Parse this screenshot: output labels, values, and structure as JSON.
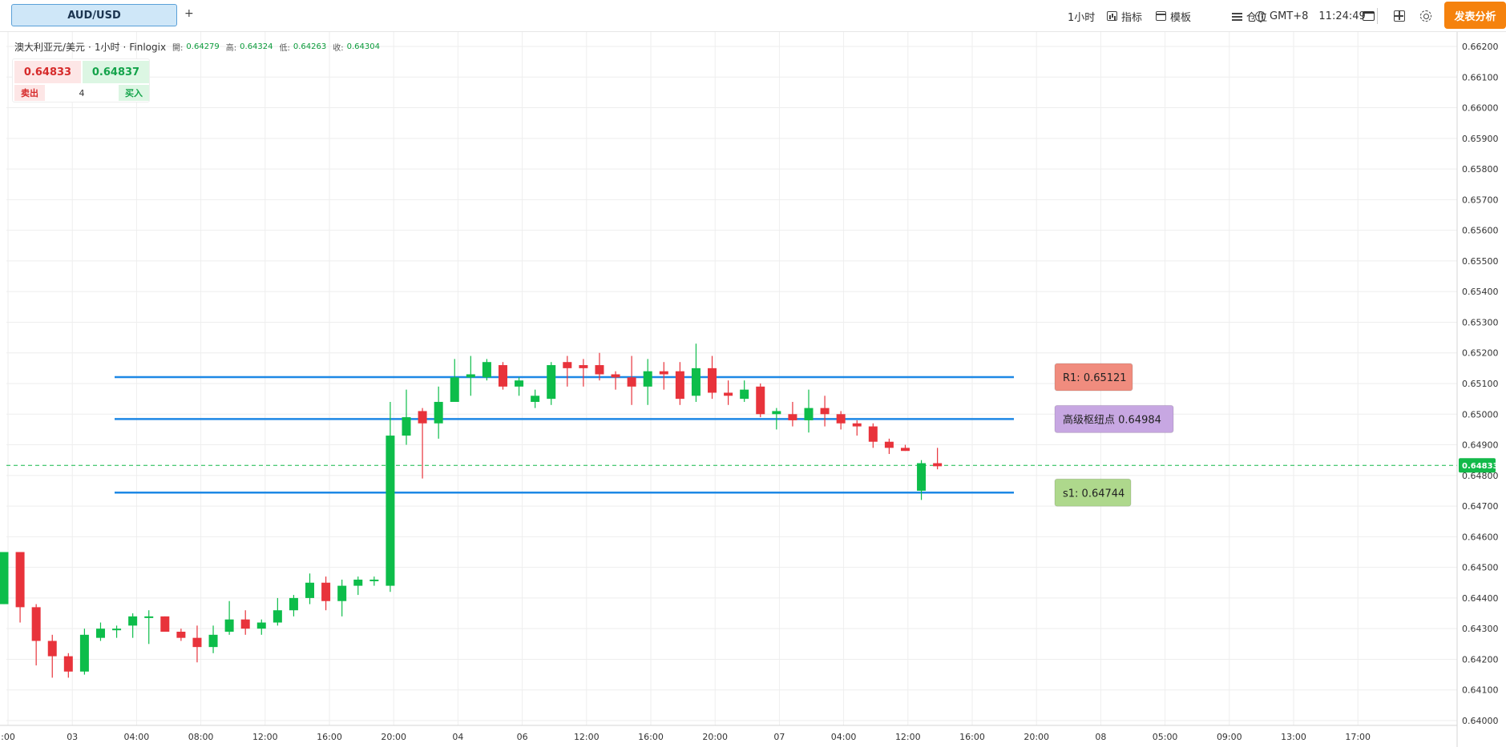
{
  "toolbar": {
    "symbol_tab": "AUD/USD",
    "add_tab": "+",
    "interval": "1小时",
    "indicators_label": "指标",
    "templates_label": "模板",
    "positions_label": "仓位",
    "timezone": "GMT+8",
    "clock": "11:24:49",
    "publish_label": "发表分析"
  },
  "legend": {
    "symbol_name": "澳大利亚元/美元",
    "interval": "1小时",
    "source": "Finlogix",
    "open_label": "開:",
    "open": "0.64279",
    "high_label": "高:",
    "high": "0.64324",
    "low_label": "低:",
    "low": "0.64263",
    "close_label": "收:",
    "close": "0.64304",
    "separator": "·"
  },
  "trade": {
    "sell_price": "0.64833",
    "buy_price": "0.64837",
    "sell_label": "卖出",
    "buy_label": "买入",
    "quantity": "4"
  },
  "colors": {
    "up": "#0dbd4a",
    "down": "#e8333b",
    "level_line": "#1e88e5",
    "last_price": "#13b94a",
    "publish": "#f5820d"
  },
  "chart_data": {
    "type": "candlestick",
    "symbol": "AUD/USD",
    "ylim": [
      0.64,
      0.6623
    ],
    "y_ticks": [
      "0.66200",
      "0.66100",
      "0.66000",
      "0.65900",
      "0.65800",
      "0.65700",
      "0.65600",
      "0.65500",
      "0.65400",
      "0.65300",
      "0.65200",
      "0.65100",
      "0.65000",
      "0.64900",
      "0.64800",
      "0.64700",
      "0.64600",
      "0.64500",
      "0.64400",
      "0.64300",
      "0.64200",
      "0.64100",
      "0.64000"
    ],
    "x_ticks": [
      ":00",
      "03",
      "04:00",
      "08:00",
      "12:00",
      "16:00",
      "20:00",
      "04",
      "06",
      "12:00",
      "16:00",
      "20:00",
      "07",
      "04:00",
      "12:00",
      "16:00",
      "20:00",
      "08",
      "05:00",
      "09:00",
      "13:00",
      "17:00"
    ],
    "last_price": "0.64833",
    "levels": [
      {
        "name": "R1",
        "label": "R1: 0.65121",
        "value": 0.65121,
        "color": "#f08c7e"
      },
      {
        "name": "pivot",
        "label": "高级枢纽点 0.64984",
        "value": 0.64984,
        "color": "#c7a7e2"
      },
      {
        "name": "S1",
        "label": "s1: 0.64744",
        "value": 0.64744,
        "color": "#aed88c"
      }
    ],
    "candles": [
      [
        0.6438,
        0.6455,
        0.6438,
        0.6455
      ],
      [
        0.6455,
        0.6455,
        0.6432,
        0.6437
      ],
      [
        0.6437,
        0.6438,
        0.6418,
        0.6426
      ],
      [
        0.6426,
        0.6428,
        0.6414,
        0.6421
      ],
      [
        0.6421,
        0.6422,
        0.6414,
        0.6416
      ],
      [
        0.6416,
        0.643,
        0.6415,
        0.6428
      ],
      [
        0.6427,
        0.6432,
        0.6426,
        0.643
      ],
      [
        0.643,
        0.6431,
        0.6427,
        0.643
      ],
      [
        0.6431,
        0.6435,
        0.6427,
        0.6434
      ],
      [
        0.6434,
        0.6436,
        0.6425,
        0.6434
      ],
      [
        0.6434,
        0.6434,
        0.6429,
        0.6429
      ],
      [
        0.6429,
        0.643,
        0.6426,
        0.6427
      ],
      [
        0.6427,
        0.6431,
        0.6419,
        0.6424
      ],
      [
        0.6424,
        0.6431,
        0.6422,
        0.6428
      ],
      [
        0.6429,
        0.6439,
        0.6428,
        0.6433
      ],
      [
        0.6433,
        0.6436,
        0.6428,
        0.643
      ],
      [
        0.643,
        0.6433,
        0.6428,
        0.6432
      ],
      [
        0.6432,
        0.644,
        0.6431,
        0.6436
      ],
      [
        0.6436,
        0.6441,
        0.6434,
        0.644
      ],
      [
        0.644,
        0.6448,
        0.6438,
        0.6445
      ],
      [
        0.6445,
        0.6447,
        0.6436,
        0.6439
      ],
      [
        0.6439,
        0.6446,
        0.6434,
        0.6444
      ],
      [
        0.6444,
        0.6447,
        0.6441,
        0.6446
      ],
      [
        0.6446,
        0.6447,
        0.6444,
        0.6446
      ],
      [
        0.6444,
        0.6504,
        0.6442,
        0.6493
      ],
      [
        0.6493,
        0.6508,
        0.649,
        0.6499
      ],
      [
        0.6501,
        0.6502,
        0.6479,
        0.6497
      ],
      [
        0.6497,
        0.6509,
        0.6492,
        0.6504
      ],
      [
        0.6504,
        0.6518,
        0.6505,
        0.6512
      ],
      [
        0.6512,
        0.6519,
        0.6506,
        0.6513
      ],
      [
        0.6512,
        0.6518,
        0.6511,
        0.6517
      ],
      [
        0.6516,
        0.6517,
        0.6508,
        0.6509
      ],
      [
        0.6509,
        0.6512,
        0.6506,
        0.6511
      ],
      [
        0.6504,
        0.6508,
        0.6502,
        0.6506
      ],
      [
        0.6505,
        0.6517,
        0.6503,
        0.6516
      ],
      [
        0.6517,
        0.6519,
        0.6509,
        0.6515
      ],
      [
        0.6516,
        0.6518,
        0.6509,
        0.6515
      ],
      [
        0.6516,
        0.652,
        0.6511,
        0.6513
      ],
      [
        0.6513,
        0.6514,
        0.6508,
        0.6512
      ],
      [
        0.6512,
        0.6519,
        0.6503,
        0.6509
      ],
      [
        0.6509,
        0.6518,
        0.6503,
        0.6514
      ],
      [
        0.6514,
        0.6517,
        0.6508,
        0.6513
      ],
      [
        0.6514,
        0.6517,
        0.6503,
        0.6505
      ],
      [
        0.6506,
        0.6523,
        0.6504,
        0.6515
      ],
      [
        0.6515,
        0.6519,
        0.6505,
        0.6507
      ],
      [
        0.6507,
        0.6511,
        0.6503,
        0.6506
      ],
      [
        0.6505,
        0.6511,
        0.6504,
        0.6508
      ],
      [
        0.6509,
        0.651,
        0.6499,
        0.65
      ],
      [
        0.65,
        0.6502,
        0.6495,
        0.6501
      ],
      [
        0.65,
        0.6504,
        0.6496,
        0.6498
      ],
      [
        0.6498,
        0.6508,
        0.6494,
        0.6502
      ],
      [
        0.6502,
        0.6506,
        0.6496,
        0.65
      ],
      [
        0.65,
        0.6501,
        0.6495,
        0.6497
      ],
      [
        0.6497,
        0.6498,
        0.6493,
        0.6496
      ],
      [
        0.6496,
        0.6497,
        0.6489,
        0.6491
      ],
      [
        0.6491,
        0.6492,
        0.6487,
        0.6489
      ],
      [
        0.6489,
        0.649,
        0.6488,
        0.6488
      ],
      [
        0.6475,
        0.6485,
        0.6472,
        0.6484
      ],
      [
        0.6484,
        0.6489,
        0.6482,
        0.6483
      ]
    ]
  }
}
